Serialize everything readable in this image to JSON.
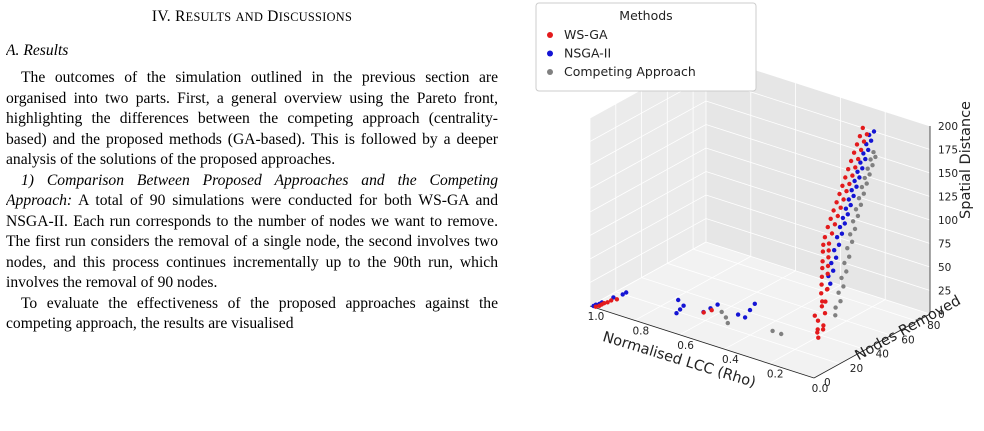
{
  "section_heading": {
    "numeral": "IV.",
    "word1_first": "R",
    "word1_rest": "ESULTS",
    "word2": "AND",
    "word3_first": "D",
    "word3_rest": "ISCUSSIONS"
  },
  "subsection_heading": "A. Results",
  "paragraphs": {
    "p1": "The outcomes of the simulation outlined in the previous section are organised into two parts. First, a general overview using the Pareto front, highlighting the differences between the competing approach (centrality-based) and the proposed methods (GA-based). This is followed by a deeper analysis of the solutions of the proposed approaches.",
    "p2_runin": "1) Comparison Between Proposed Approaches and the Competing Approach:",
    "p2_body": "A total of 90 simulations were conducted for both WS-GA and NSGA-II. Each run corresponds to the number of nodes we want to remove. The first run considers the removal of a single node, the second involves two nodes, and this process continues incrementally up to the 90th run, which involves the removal of 90 nodes.",
    "p3": "To evaluate the effectiveness of the proposed approaches against the competing approach, the results are visualised"
  },
  "colors": {
    "ws_ga": "#e31a1c",
    "nsga_ii": "#1414d4",
    "competing": "#808080",
    "pane": "#ebebeb"
  },
  "chart_data": {
    "type": "scatter",
    "projection": "3d",
    "legend": {
      "title": "Methods",
      "position": "top-left"
    },
    "axes": {
      "x": {
        "label": "Normalised LCC (Rho)",
        "range": [
          0,
          1
        ],
        "ticks": [
          "0.0",
          "0.2",
          "0.4",
          "0.6",
          "0.8",
          "1.0"
        ]
      },
      "y": {
        "label": "Nodes Removed",
        "range": [
          0,
          90
        ],
        "ticks": [
          "0",
          "20",
          "40",
          "60",
          "80"
        ]
      },
      "z": {
        "label": "Spatial Distance",
        "range": [
          0,
          200
        ],
        "ticks": [
          "0",
          "25",
          "50",
          "75",
          "100",
          "125",
          "150",
          "175",
          "200"
        ]
      }
    },
    "grid": true,
    "series": [
      {
        "name": "WS-GA",
        "points": [
          [
            0.98,
            1,
            0
          ],
          [
            0.97,
            2,
            1
          ],
          [
            0.965,
            3,
            2
          ],
          [
            0.96,
            4,
            3
          ],
          [
            0.95,
            5,
            4
          ],
          [
            0.94,
            6,
            6
          ],
          [
            0.92,
            7,
            8
          ],
          [
            0.55,
            10,
            20
          ],
          [
            0.52,
            11,
            24
          ],
          [
            0.05,
            12,
            30
          ],
          [
            0.06,
            13,
            34
          ],
          [
            0.04,
            14,
            38
          ],
          [
            0.07,
            15,
            35
          ],
          [
            0.05,
            16,
            40
          ],
          [
            0.08,
            17,
            42
          ],
          [
            0.1,
            18,
            45
          ],
          [
            0.06,
            19,
            50
          ],
          [
            0.08,
            20,
            55
          ],
          [
            0.07,
            21,
            60
          ],
          [
            0.09,
            22,
            58
          ],
          [
            0.1,
            23,
            65
          ],
          [
            0.08,
            24,
            70
          ],
          [
            0.11,
            25,
            72
          ],
          [
            0.09,
            26,
            68
          ],
          [
            0.12,
            27,
            78
          ],
          [
            0.1,
            28,
            82
          ],
          [
            0.13,
            29,
            85
          ],
          [
            0.11,
            30,
            88
          ],
          [
            0.14,
            31,
            90
          ],
          [
            0.12,
            32,
            95
          ],
          [
            0.15,
            33,
            98
          ],
          [
            0.13,
            34,
            100
          ],
          [
            0.16,
            35,
            103
          ],
          [
            0.14,
            36,
            105
          ],
          [
            0.17,
            38,
            108
          ],
          [
            0.15,
            40,
            112
          ],
          [
            0.18,
            42,
            115
          ],
          [
            0.16,
            44,
            118
          ],
          [
            0.19,
            46,
            120
          ],
          [
            0.17,
            48,
            123
          ],
          [
            0.2,
            50,
            125
          ],
          [
            0.18,
            52,
            128
          ],
          [
            0.21,
            54,
            130
          ],
          [
            0.19,
            56,
            133
          ],
          [
            0.22,
            58,
            135
          ],
          [
            0.2,
            60,
            138
          ],
          [
            0.23,
            62,
            140
          ],
          [
            0.21,
            64,
            142
          ],
          [
            0.24,
            66,
            145
          ],
          [
            0.22,
            68,
            147
          ],
          [
            0.25,
            70,
            150
          ],
          [
            0.23,
            72,
            152
          ],
          [
            0.26,
            74,
            155
          ],
          [
            0.24,
            76,
            157
          ],
          [
            0.27,
            78,
            160
          ],
          [
            0.25,
            80,
            163
          ],
          [
            0.28,
            82,
            165
          ],
          [
            0.26,
            84,
            168
          ],
          [
            0.29,
            86,
            170
          ],
          [
            0.27,
            88,
            172
          ],
          [
            0.3,
            90,
            175
          ]
        ]
      },
      {
        "name": "NSGA-II",
        "points": [
          [
            0.99,
            1,
            0
          ],
          [
            0.985,
            2,
            1
          ],
          [
            0.975,
            3,
            2
          ],
          [
            0.97,
            4,
            3
          ],
          [
            0.93,
            6,
            10
          ],
          [
            0.9,
            8,
            14
          ],
          [
            0.89,
            9,
            16
          ],
          [
            0.7,
            15,
            4
          ],
          [
            0.69,
            16,
            8
          ],
          [
            0.68,
            17,
            12
          ],
          [
            0.71,
            18,
            15
          ],
          [
            0.62,
            22,
            6
          ],
          [
            0.6,
            24,
            10
          ],
          [
            0.58,
            26,
            14
          ],
          [
            0.5,
            28,
            8
          ],
          [
            0.48,
            30,
            5
          ],
          [
            0.47,
            32,
            12
          ],
          [
            0.46,
            34,
            18
          ],
          [
            0.1,
            30,
            70
          ],
          [
            0.12,
            32,
            75
          ],
          [
            0.11,
            34,
            80
          ],
          [
            0.13,
            36,
            85
          ],
          [
            0.12,
            38,
            90
          ],
          [
            0.14,
            40,
            95
          ],
          [
            0.13,
            42,
            100
          ],
          [
            0.15,
            44,
            105
          ],
          [
            0.14,
            46,
            108
          ],
          [
            0.16,
            48,
            112
          ],
          [
            0.15,
            50,
            115
          ],
          [
            0.17,
            52,
            118
          ],
          [
            0.16,
            54,
            121
          ],
          [
            0.18,
            56,
            124
          ],
          [
            0.17,
            58,
            127
          ],
          [
            0.19,
            60,
            130
          ],
          [
            0.18,
            62,
            133
          ],
          [
            0.2,
            64,
            136
          ],
          [
            0.19,
            66,
            139
          ],
          [
            0.21,
            68,
            142
          ],
          [
            0.2,
            70,
            145
          ],
          [
            0.22,
            72,
            148
          ],
          [
            0.21,
            74,
            151
          ],
          [
            0.23,
            76,
            154
          ],
          [
            0.22,
            78,
            157
          ],
          [
            0.24,
            80,
            160
          ],
          [
            0.23,
            82,
            163
          ],
          [
            0.25,
            84,
            166
          ],
          [
            0.24,
            86,
            169
          ],
          [
            0.26,
            88,
            172
          ],
          [
            0.25,
            90,
            175
          ]
        ]
      },
      {
        "name": "Competing Approach",
        "points": [
          [
            0.5,
            20,
            5
          ],
          [
            0.52,
            22,
            8
          ],
          [
            0.55,
            24,
            10
          ],
          [
            0.3,
            20,
            12
          ],
          [
            0.25,
            18,
            14
          ],
          [
            0.02,
            20,
            50
          ],
          [
            0.03,
            22,
            56
          ],
          [
            0.02,
            24,
            62
          ],
          [
            0.04,
            26,
            68
          ],
          [
            0.03,
            28,
            74
          ],
          [
            0.05,
            30,
            80
          ],
          [
            0.04,
            32,
            86
          ],
          [
            0.06,
            34,
            92
          ],
          [
            0.05,
            36,
            98
          ],
          [
            0.07,
            38,
            104
          ],
          [
            0.06,
            40,
            110
          ],
          [
            0.08,
            42,
            115
          ],
          [
            0.07,
            44,
            120
          ],
          [
            0.09,
            46,
            125
          ],
          [
            0.08,
            48,
            130
          ],
          [
            0.1,
            50,
            134
          ],
          [
            0.09,
            52,
            138
          ],
          [
            0.11,
            54,
            142
          ],
          [
            0.1,
            56,
            146
          ],
          [
            0.12,
            58,
            150
          ],
          [
            0.11,
            60,
            153
          ],
          [
            0.13,
            62,
            156
          ],
          [
            0.12,
            64,
            159
          ],
          [
            0.14,
            66,
            162
          ],
          [
            0.13,
            68,
            165
          ],
          [
            0.15,
            70,
            168
          ],
          [
            0.14,
            72,
            170
          ],
          [
            0.16,
            74,
            172
          ]
        ]
      }
    ]
  }
}
